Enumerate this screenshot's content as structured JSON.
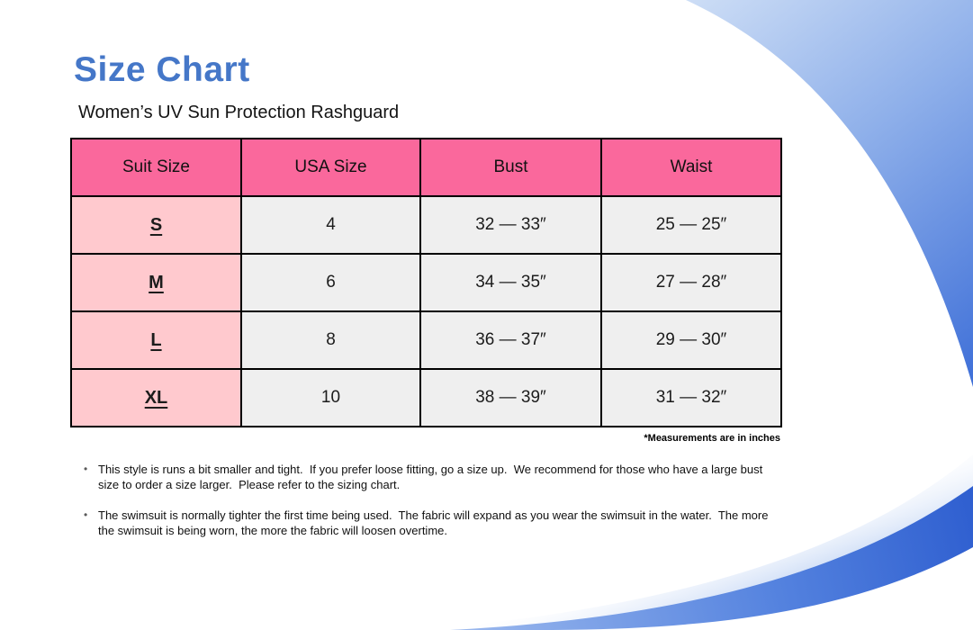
{
  "page": {
    "title": "Size Chart",
    "subtitle": "Women’s UV Sun Protection Rashguard",
    "footnote": "*Measurements are in inches"
  },
  "table": {
    "headers": [
      "Suit Size",
      "USA Size",
      "Bust",
      "Waist"
    ],
    "rows": [
      [
        "S",
        "4",
        "32 — 33″",
        "25 — 25″"
      ],
      [
        "M",
        "6",
        "34 — 35″",
        "27 — 28″"
      ],
      [
        "L",
        "8",
        "36 — 37″",
        "29 — 30″"
      ],
      [
        "XL",
        "10",
        "38 — 39″",
        "31 — 32″"
      ]
    ]
  },
  "notes": [
    "This style is runs a bit smaller and tight.  If you prefer loose fitting, go a size up.  We recommend for those who have a large bust size to order a size larger.  Please refer to the sizing chart.",
    "The swimsuit is normally tighter the first time being used.  The fabric will expand as you wear the swimsuit in the water.  The more the swimsuit is being worn, the more the fabric will loosen overtime."
  ],
  "colors": {
    "title_blue": "#4577C8",
    "header_pink": "#FA689C",
    "row_pink": "#FFC9CE",
    "cell_gray": "#EFEFEF",
    "swoosh_light": "#CFDFF6",
    "swoosh_mid": "#8FB0EA",
    "swoosh_dark": "#3E6FD8"
  }
}
